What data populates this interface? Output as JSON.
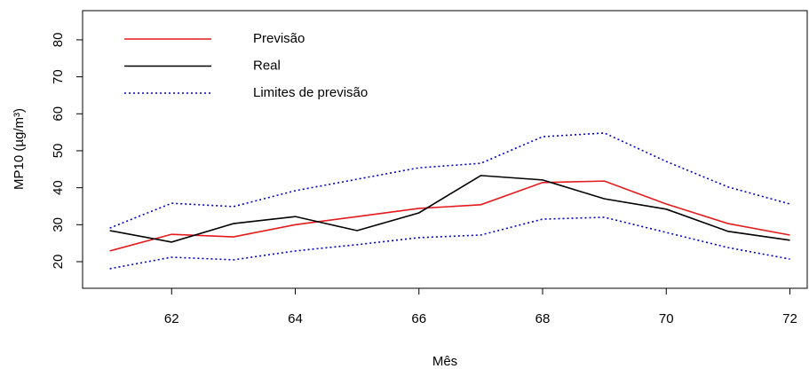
{
  "chart_data": {
    "type": "line",
    "xlabel": "Mês",
    "ylabel": "MP10 (µg/m³)",
    "x": [
      61,
      62,
      63,
      64,
      65,
      66,
      67,
      68,
      69,
      70,
      71,
      72
    ],
    "series": [
      {
        "name": "Previsão",
        "color": "#e41a1c",
        "style": "solid",
        "values": [
          22.9,
          27.4,
          26.7,
          30,
          32.2,
          34.4,
          35.4,
          41.4,
          41.8,
          35.6,
          30.3,
          27.2
        ]
      },
      {
        "name": "Real",
        "color": "#000000",
        "style": "solid",
        "values": [
          28.4,
          25.3,
          30.3,
          32.2,
          28.4,
          33.2,
          43.3,
          42.1,
          37,
          34.2,
          28.2,
          25.8
        ]
      },
      {
        "name": "Limites de previsão",
        "color": "#0000cc",
        "style": "dotted",
        "values": [
          29.1,
          35.8,
          34.9,
          39.2,
          42.3,
          45.4,
          46.6,
          53.8,
          54.8,
          47.1,
          40.2,
          35.6
        ],
        "lower": [
          18.1,
          21.2,
          20.5,
          22.9,
          24.6,
          26.5,
          27.2,
          31.5,
          32,
          27.9,
          23.8,
          20.7
        ]
      }
    ],
    "xlim": [
      60.56,
      72.28
    ],
    "xticks": [
      62,
      64,
      66,
      68,
      70,
      72
    ],
    "ylim": [
      12.8,
      87.9
    ],
    "yticks": [
      20,
      30,
      40,
      50,
      60,
      70,
      80
    ],
    "legend": "top-left"
  }
}
